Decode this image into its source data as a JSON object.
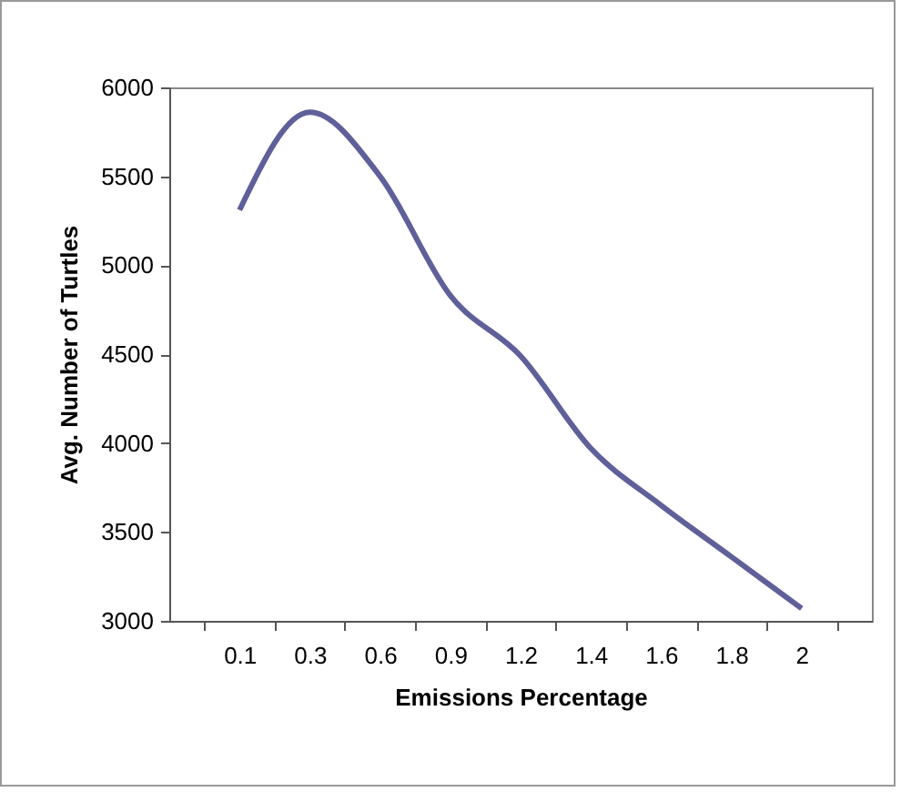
{
  "chart_data": {
    "type": "line",
    "xlabel": "Emissions Percentage",
    "ylabel": "Avg. Number of Turtles",
    "categories": [
      "0.1",
      "0.3",
      "0.6",
      "0.9",
      "1.2",
      "1.4",
      "1.6",
      "1.8",
      "2"
    ],
    "series": [
      {
        "color": "#5f5f9a",
        "values": [
          5310,
          5860,
          5500,
          4830,
          4490,
          3970,
          3650,
          3360,
          3070
        ]
      }
    ],
    "ylim": [
      3000,
      6000
    ],
    "yticks": [
      3000,
      3500,
      4000,
      4500,
      5000,
      5500,
      6000
    ],
    "grid": false,
    "marker": "none",
    "line_style": "solid"
  }
}
